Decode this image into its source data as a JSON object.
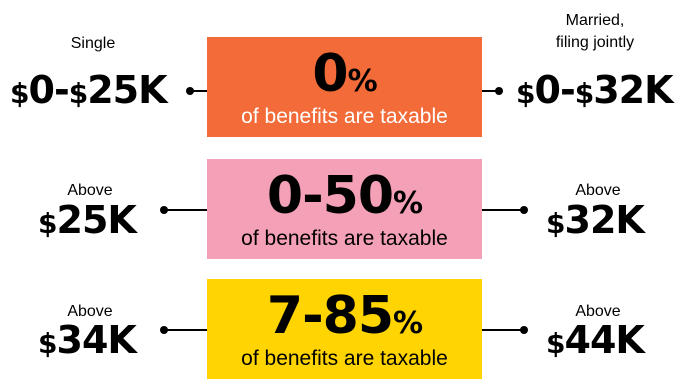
{
  "headers": {
    "single": "Single",
    "married": "Married,\nfiling jointly"
  },
  "rows": [
    {
      "left_label": "",
      "left_amount": "$0-$25K",
      "right_label": "",
      "right_amount": "$0-$32K",
      "percent": "0",
      "percent_sign": "%",
      "caption": "of benefits are taxable",
      "color": "#F26B38"
    },
    {
      "left_label": "Above",
      "left_amount": "$25K",
      "right_label": "Above",
      "right_amount": "$32K",
      "percent": "0-50",
      "percent_sign": "%",
      "caption": "of benefits are taxable",
      "color": "#F4A0B6"
    },
    {
      "left_label": "Above",
      "left_amount": "$34K",
      "right_label": "Above",
      "right_amount": "$44K",
      "percent": "7-85",
      "percent_sign": "%",
      "caption": "of benefits are taxable",
      "color": "#FFD400"
    }
  ]
}
